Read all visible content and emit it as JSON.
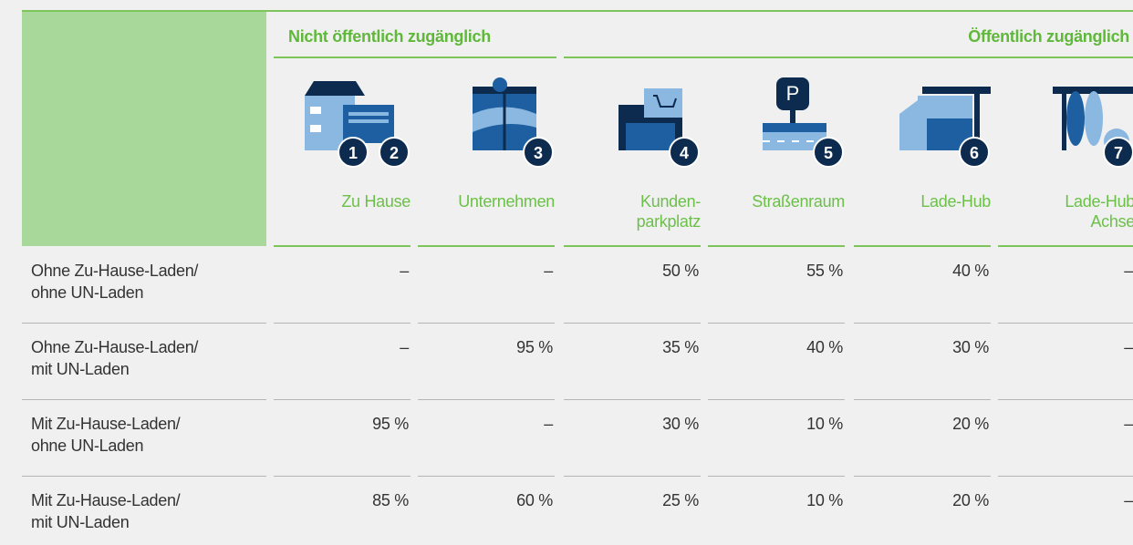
{
  "header": {
    "groups": [
      "Nicht öffentlich zugänglich",
      "Öffentlich zugänglich"
    ],
    "columns": [
      {
        "badges": [
          "1",
          "2"
        ],
        "label": "Zu Hause"
      },
      {
        "badges": [
          "3"
        ],
        "label": "Unternehmen"
      },
      {
        "badges": [
          "4"
        ],
        "label": "Kunden-\nparkplatz"
      },
      {
        "badges": [
          "5"
        ],
        "label": "Straßenraum"
      },
      {
        "badges": [
          "6"
        ],
        "label": "Lade-Hub"
      },
      {
        "badges": [
          "7"
        ],
        "label": "Lade-Hub\nAchse"
      }
    ]
  },
  "table": {
    "rows": [
      [
        "Ohne Zu-Hause-Laden/\nohne UN-Laden",
        "–",
        "–",
        "50 %",
        "55 %",
        "40 %",
        "–"
      ],
      [
        "Ohne Zu-Hause-Laden/\nmit UN-Laden",
        "–",
        "95 %",
        "35 %",
        "40 %",
        "30 %",
        "–"
      ],
      [
        "Mit Zu-Hause-Laden/\nohne UN-Laden",
        "95 %",
        "–",
        "30 %",
        "10 %",
        "20 %",
        "–"
      ],
      [
        "Mit Zu-Hause-Laden/\nmit UN-Laden",
        "85 %",
        "60 %",
        "25 %",
        "10 %",
        "20 %",
        "–"
      ]
    ]
  }
}
